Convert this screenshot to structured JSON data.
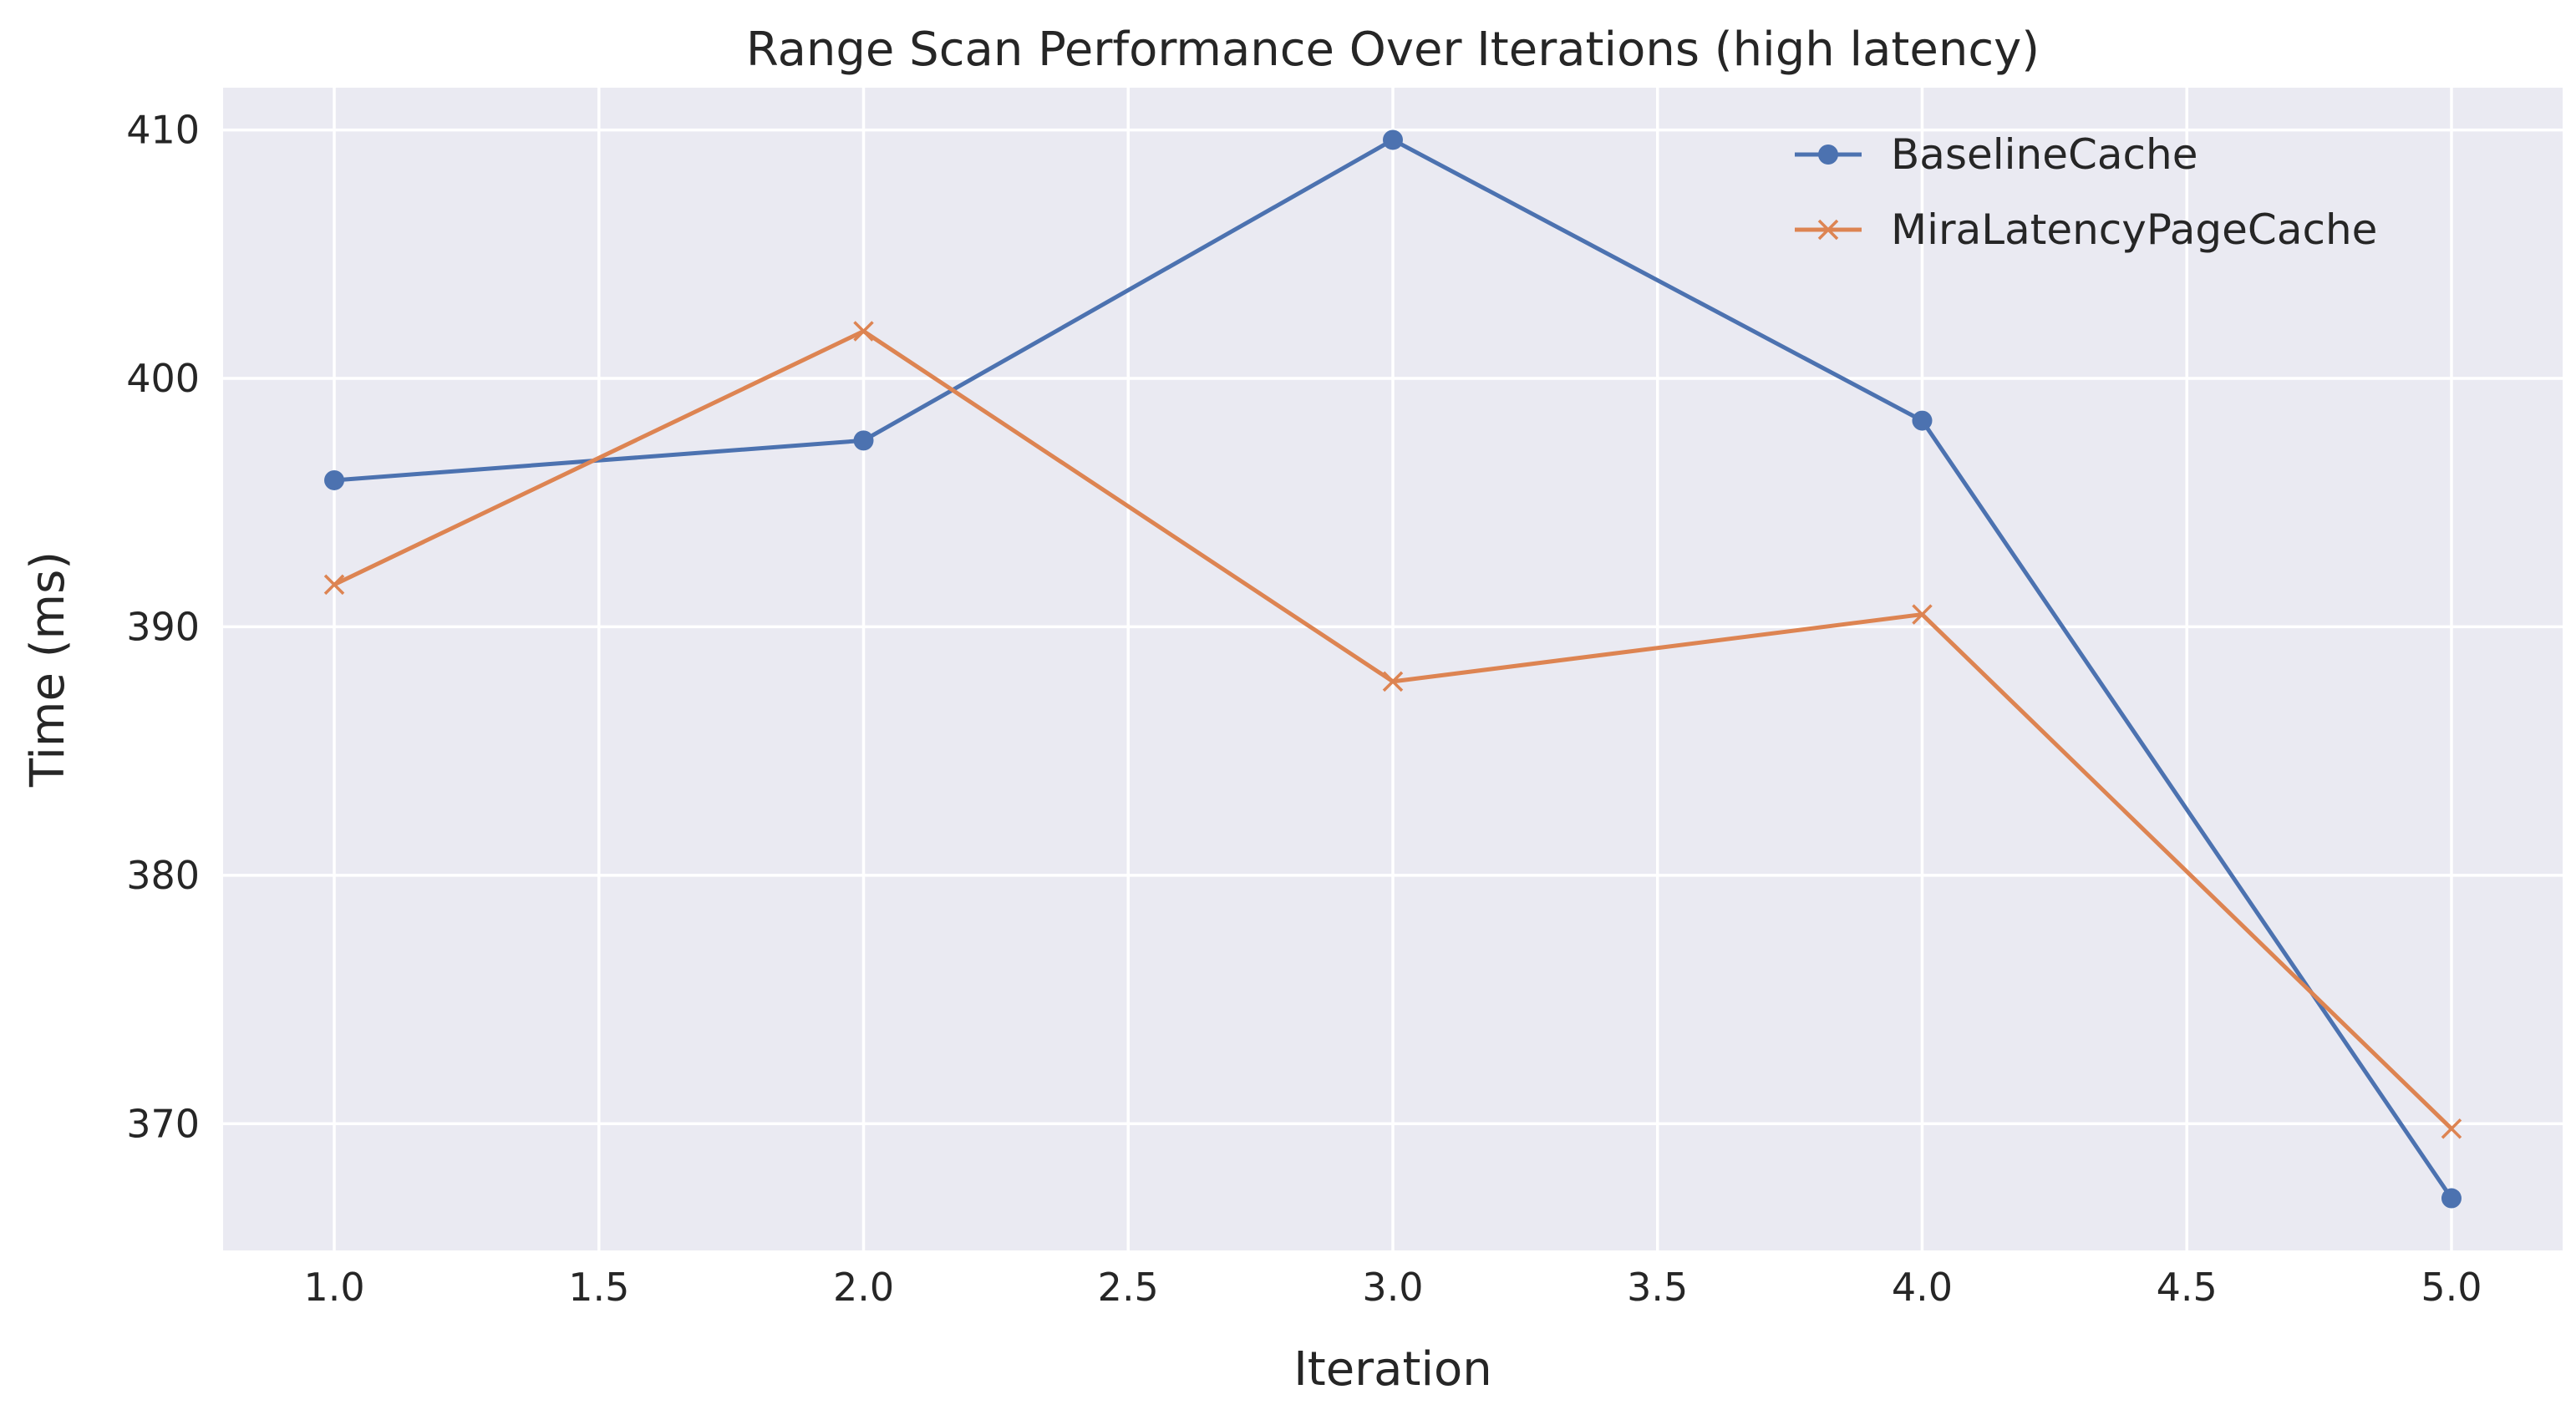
{
  "chart_data": {
    "type": "line",
    "title": "Range Scan Performance Over Iterations (high latency)",
    "xlabel": "Iteration",
    "ylabel": "Time (ms)",
    "xlim": [
      0.79,
      5.21
    ],
    "ylim": [
      364.9,
      411.7
    ],
    "xticks": [
      1.0,
      1.5,
      2.0,
      2.5,
      3.0,
      3.5,
      4.0,
      4.5,
      5.0
    ],
    "xtick_labels": [
      "1.0",
      "1.5",
      "2.0",
      "2.5",
      "3.0",
      "3.5",
      "4.0",
      "4.5",
      "5.0"
    ],
    "yticks": [
      370,
      380,
      390,
      400,
      410
    ],
    "ytick_labels": [
      "370",
      "380",
      "390",
      "400",
      "410"
    ],
    "grid": true,
    "legend_position": "top-right",
    "x": [
      1,
      2,
      3,
      4,
      5
    ],
    "series": [
      {
        "name": "BaselineCache",
        "values": [
          395.9,
          397.5,
          409.6,
          398.3,
          367.0
        ],
        "color": "#4c72b0",
        "marker": "circle"
      },
      {
        "name": "MiraLatencyPageCache",
        "values": [
          391.7,
          401.9,
          387.8,
          390.5,
          369.8
        ],
        "color": "#dd8452",
        "marker": "x"
      }
    ],
    "background_color": "#eaeaf2",
    "grid_color": "#ffffff"
  }
}
